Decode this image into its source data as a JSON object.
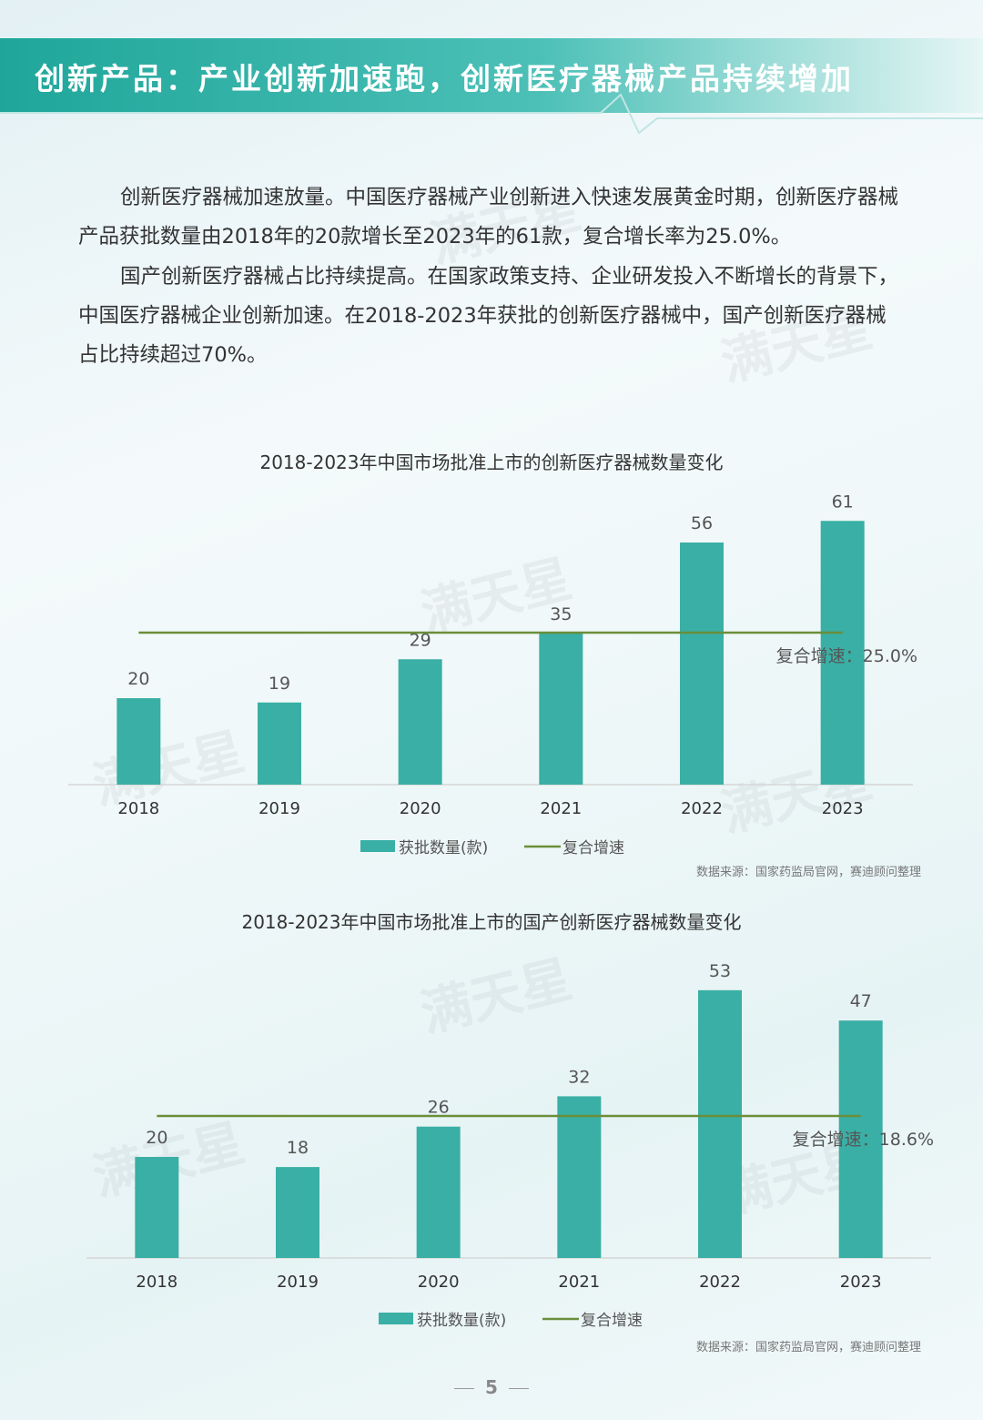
{
  "banner": {
    "title": "创新产品：产业创新加速跑，创新医疗器械产品持续增加"
  },
  "paragraphs": [
    "创新医疗器械加速放量。中国医疗器械产业创新进入快速发展黄金时期，创新医疗器械产品获批数量由2018年的20款增长至2023年的61款，复合增长率为25.0%。",
    "国产创新医疗器械占比持续提高。在国家政策支持、企业研发投入不断增长的背景下，中国医疗器械企业创新加速。在2018-2023年获批的创新医疗器械中，国产创新医疗器械占比持续超过70%。"
  ],
  "watermark": "满天星",
  "chart_data": [
    {
      "type": "bar",
      "title": "2018-2023年中国市场批准上市的创新医疗器械数量变化",
      "categories": [
        "2018",
        "2019",
        "2020",
        "2021",
        "2022",
        "2023"
      ],
      "series": [
        {
          "name": "获批数量(款)",
          "values": [
            20,
            19,
            29,
            35,
            56,
            61
          ]
        }
      ],
      "cagr_line": {
        "name": "复合增速",
        "label": "复合增速：25.0%"
      },
      "legend": [
        "获批数量(款)",
        "复合增速"
      ],
      "source": "数据来源：国家药监局官网，赛迪顾问整理",
      "colors": {
        "bar": "#3aafa5",
        "line": "#6b8e3a"
      }
    },
    {
      "type": "bar",
      "title": "2018-2023年中国市场批准上市的国产创新医疗器械数量变化",
      "categories": [
        "2018",
        "2019",
        "2020",
        "2021",
        "2022",
        "2023"
      ],
      "series": [
        {
          "name": "获批数量(款)",
          "values": [
            20,
            18,
            26,
            32,
            53,
            47
          ]
        }
      ],
      "cagr_line": {
        "name": "复合增速",
        "label": "复合增速：18.6%"
      },
      "legend": [
        "获批数量(款)",
        "复合增速"
      ],
      "source": "数据来源：国家药监局官网，赛迪顾问整理",
      "colors": {
        "bar": "#3aafa5",
        "line": "#6b8e3a"
      }
    }
  ],
  "page_number": "5"
}
